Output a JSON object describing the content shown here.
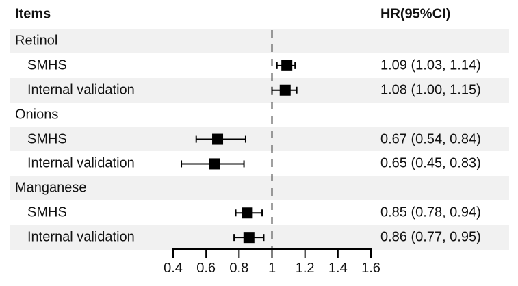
{
  "header": {
    "items_label": "Items",
    "hr_label": "HR(95%CI)"
  },
  "colors": {
    "background": "#ffffff",
    "row_stripe": "#f1f1f1",
    "text": "#111111",
    "marker": "#000000",
    "axis": "#000000",
    "reference_line": "#404040"
  },
  "chart_data": {
    "type": "scatter",
    "subtype": "forest-plot",
    "title": "",
    "columns": {
      "left_header": "Items",
      "right_header": "HR(95%CI)"
    },
    "rows": [
      {
        "kind": "group",
        "label": "Retinol",
        "hr_text": "",
        "hr": null,
        "ci_low": null,
        "ci_high": null
      },
      {
        "kind": "entry",
        "label": "SMHS",
        "hr_text": "1.09 (1.03, 1.14)",
        "hr": 1.09,
        "ci_low": 1.03,
        "ci_high": 1.14
      },
      {
        "kind": "entry",
        "label": "Internal validation",
        "hr_text": "1.08 (1.00, 1.15)",
        "hr": 1.08,
        "ci_low": 1.0,
        "ci_high": 1.15
      },
      {
        "kind": "group",
        "label": "Onions",
        "hr_text": "",
        "hr": null,
        "ci_low": null,
        "ci_high": null
      },
      {
        "kind": "entry",
        "label": "SMHS",
        "hr_text": "0.67 (0.54, 0.84)",
        "hr": 0.67,
        "ci_low": 0.54,
        "ci_high": 0.84
      },
      {
        "kind": "entry",
        "label": "Internal validation",
        "hr_text": "0.65 (0.45, 0.83)",
        "hr": 0.65,
        "ci_low": 0.45,
        "ci_high": 0.83
      },
      {
        "kind": "group",
        "label": "Manganese",
        "hr_text": "",
        "hr": null,
        "ci_low": null,
        "ci_high": null
      },
      {
        "kind": "entry",
        "label": "SMHS",
        "hr_text": "0.85 (0.78, 0.94)",
        "hr": 0.85,
        "ci_low": 0.78,
        "ci_high": 0.94
      },
      {
        "kind": "entry",
        "label": "Internal validation",
        "hr_text": "0.86 (0.77, 0.95)",
        "hr": 0.86,
        "ci_low": 0.77,
        "ci_high": 0.95
      }
    ],
    "x_axis": {
      "range": [
        0.4,
        1.6
      ],
      "ticks": [
        0.4,
        0.6,
        0.8,
        1,
        1.2,
        1.4,
        1.6
      ],
      "tick_labels": [
        "0.4",
        "0.6",
        "0.8",
        "1",
        "1.2",
        "1.4",
        "1.6"
      ],
      "reference_line": 1,
      "grid": false
    },
    "marker_shape": "black-square",
    "error_bars": true,
    "legend": "none"
  }
}
